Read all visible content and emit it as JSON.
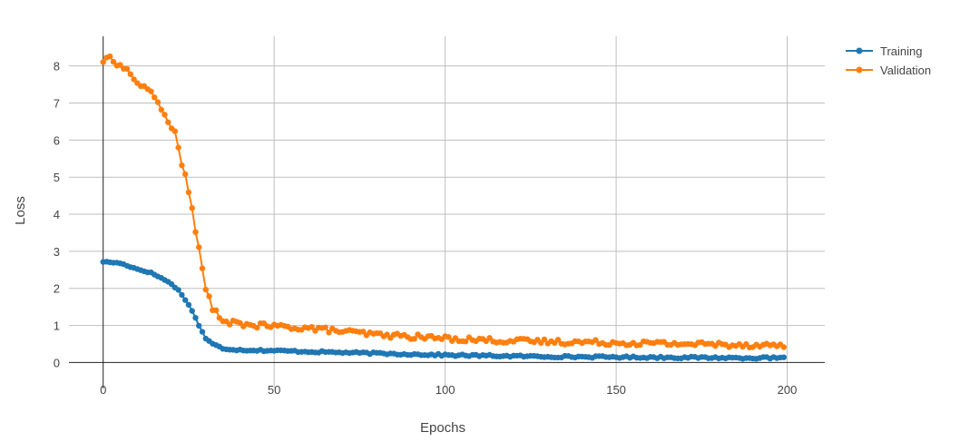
{
  "chart_data": {
    "type": "line",
    "xlabel": "Epochs",
    "ylabel": "Loss",
    "xlim": [
      -10,
      211
    ],
    "ylim": [
      -0.7,
      8.8
    ],
    "x_ticks": [
      0,
      50,
      100,
      150,
      200
    ],
    "y_ticks": [
      0,
      1,
      2,
      3,
      4,
      5,
      6,
      7,
      8
    ],
    "grid": true,
    "legend_position": "top-right",
    "markers": true,
    "series": [
      {
        "name": "Training",
        "color": "#1f77b4",
        "anchors": [
          [
            0,
            2.72
          ],
          [
            5,
            2.68
          ],
          [
            10,
            2.52
          ],
          [
            14,
            2.42
          ],
          [
            17,
            2.28
          ],
          [
            20,
            2.12
          ],
          [
            22,
            1.95
          ],
          [
            24,
            1.7
          ],
          [
            26,
            1.4
          ],
          [
            28,
            1.0
          ],
          [
            30,
            0.65
          ],
          [
            32,
            0.5
          ],
          [
            35,
            0.38
          ],
          [
            40,
            0.34
          ],
          [
            50,
            0.32
          ],
          [
            70,
            0.27
          ],
          [
            100,
            0.2
          ],
          [
            130,
            0.16
          ],
          [
            160,
            0.14
          ],
          [
            199,
            0.12
          ]
        ],
        "noise": 0.025
      },
      {
        "name": "Validation",
        "color": "#ff7f0e",
        "anchors": [
          [
            0,
            8.12
          ],
          [
            2,
            8.25
          ],
          [
            4,
            8.05
          ],
          [
            7,
            7.9
          ],
          [
            9,
            7.65
          ],
          [
            11,
            7.45
          ],
          [
            13,
            7.4
          ],
          [
            15,
            7.15
          ],
          [
            17,
            6.85
          ],
          [
            19,
            6.5
          ],
          [
            21,
            6.2
          ],
          [
            22,
            5.8
          ],
          [
            23,
            5.3
          ],
          [
            24,
            5.05
          ],
          [
            25,
            4.6
          ],
          [
            26,
            4.15
          ],
          [
            27,
            3.55
          ],
          [
            28,
            3.15
          ],
          [
            29,
            2.5
          ],
          [
            30,
            1.95
          ],
          [
            31,
            1.8
          ],
          [
            32,
            1.45
          ],
          [
            33,
            1.35
          ],
          [
            34,
            1.15
          ],
          [
            36,
            1.08
          ],
          [
            45,
            1.0
          ],
          [
            60,
            0.93
          ],
          [
            80,
            0.75
          ],
          [
            100,
            0.65
          ],
          [
            120,
            0.58
          ],
          [
            140,
            0.55
          ],
          [
            160,
            0.52
          ],
          [
            199,
            0.46
          ]
        ],
        "noise": 0.07
      }
    ]
  }
}
